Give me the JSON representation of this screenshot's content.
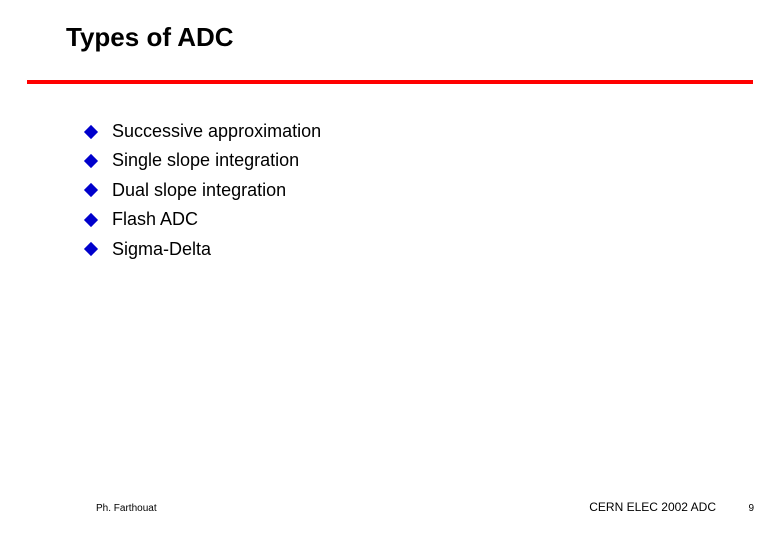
{
  "title": "Types of ADC",
  "items": [
    "Successive approximation",
    "Single slope integration",
    "Dual slope integration",
    "Flash ADC",
    "Sigma-Delta"
  ],
  "footer": {
    "left": "Ph. Farthouat",
    "right": "CERN ELEC 2002 ADC",
    "pageNumber": "9"
  },
  "style": {
    "rule_color": "#ff0000",
    "bullet_color": "#0000cc",
    "background": "#ffffff",
    "title_fontsize": 26,
    "item_fontsize": 18,
    "footer_fontsize": 10
  }
}
